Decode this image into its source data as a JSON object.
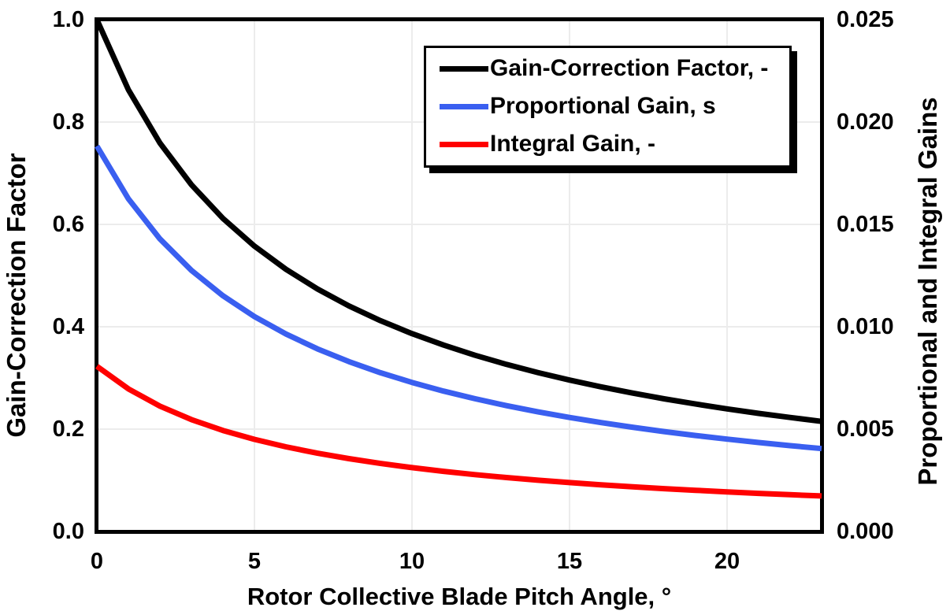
{
  "colors": {
    "background": "#FFFFFF",
    "frame": "#000000",
    "grid": "#ECECEC",
    "series_black": "#000000",
    "series_blue": "#3A5FF0",
    "series_red": "#FF0000",
    "legend_border": "#000000",
    "legend_shadow": "#000000"
  },
  "chart_data": {
    "type": "line",
    "x": [
      0,
      1,
      2,
      3,
      4,
      5,
      6,
      7,
      8,
      9,
      10,
      11,
      12,
      13,
      14,
      15,
      16,
      17,
      18,
      19,
      20,
      21,
      22,
      23
    ],
    "series": [
      {
        "name": "Gain-Correction Factor, -",
        "axis": "left",
        "color": "#000000",
        "values": [
          1.0,
          0.8631,
          0.7591,
          0.6775,
          0.6117,
          0.5576,
          0.5123,
          0.4738,
          0.4406,
          0.4119,
          0.3866,
          0.3643,
          0.3443,
          0.3265,
          0.3104,
          0.2958,
          0.2826,
          0.2705,
          0.2593,
          0.2491,
          0.2396,
          0.2308,
          0.2227,
          0.2151
        ]
      },
      {
        "name": "Proportional Gain, s",
        "axis": "right",
        "color": "#3A5FF0",
        "values": [
          0.018827,
          0.016249,
          0.014291,
          0.012755,
          0.011517,
          0.010498,
          0.009645,
          0.00892,
          0.008296,
          0.007755,
          0.007279,
          0.006858,
          0.006483,
          0.006147,
          0.005844,
          0.00557,
          0.00532,
          0.005092,
          0.004882,
          0.00469,
          0.004511,
          0.004346,
          0.004192,
          0.004049
        ]
      },
      {
        "name": "Integral Gain, -",
        "axis": "right",
        "color": "#FF0000",
        "values": [
          0.008069,
          0.006964,
          0.006125,
          0.005467,
          0.004936,
          0.004499,
          0.004134,
          0.003823,
          0.003556,
          0.003323,
          0.003119,
          0.002939,
          0.002778,
          0.002634,
          0.002505,
          0.002387,
          0.00228,
          0.002182,
          0.002092,
          0.00201,
          0.001933,
          0.001862,
          0.001797,
          0.001735
        ]
      }
    ],
    "left_axis": {
      "label": "Gain-Correction Factor",
      "range": [
        0,
        1.0
      ],
      "ticks": [
        "1.0",
        "0.8",
        "0.6",
        "0.4",
        "0.2",
        "0.0"
      ]
    },
    "right_axis": {
      "label": "Proportional and Integral Gains",
      "range": [
        0,
        0.025
      ],
      "ticks": [
        "0.025",
        "0.020",
        "0.015",
        "0.010",
        "0.005",
        "0.000"
      ]
    },
    "x_axis": {
      "label": "Rotor Collective Blade Pitch Angle, °",
      "range": [
        0,
        23
      ],
      "ticks": [
        "0",
        "5",
        "10",
        "15",
        "20"
      ]
    },
    "grid": true,
    "legend_position": "top-center",
    "line_width": 7
  }
}
